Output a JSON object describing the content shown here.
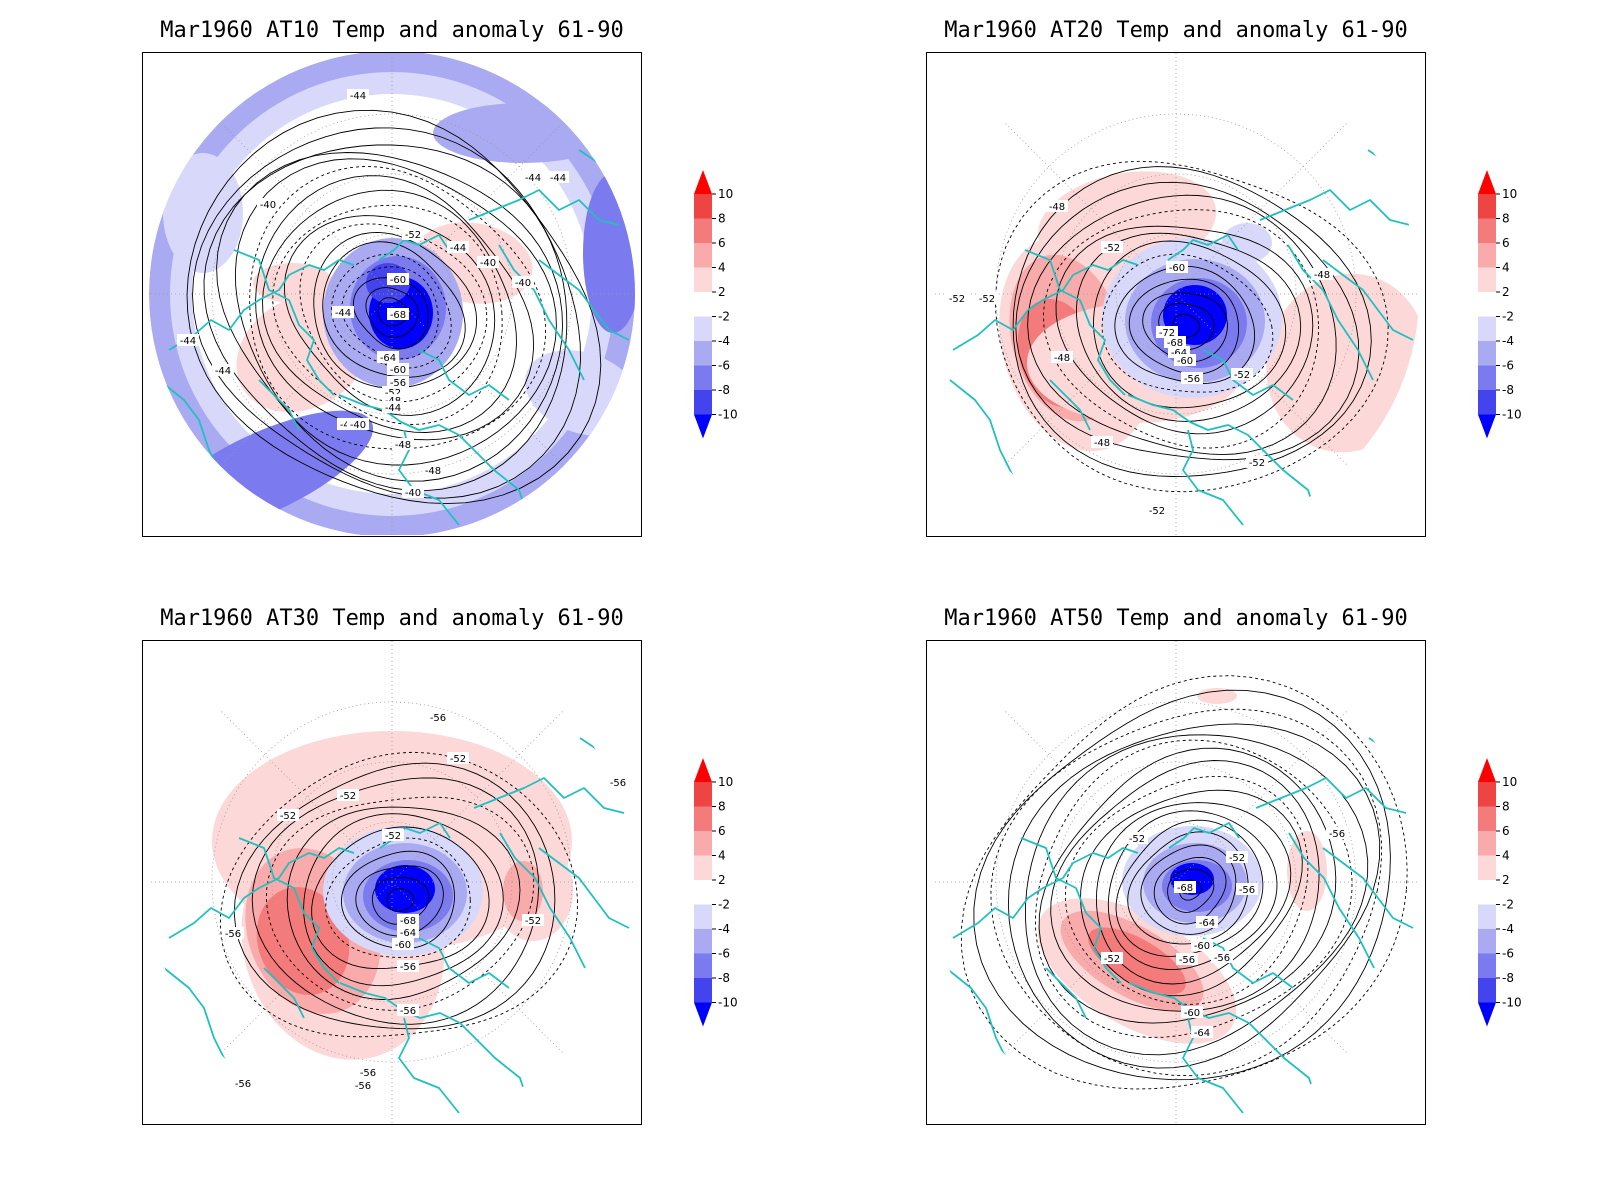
{
  "panels": [
    {
      "title": "Mar1960 AT10 Temp and anomaly 61-90",
      "contour_labels": [
        "-44",
        "-44",
        "-44",
        "-40",
        "-40",
        "-40",
        "-40",
        "-48",
        "-52",
        "-60",
        "-68",
        "-64",
        "-60",
        "-56",
        "-52",
        "-48",
        "-44",
        "-40",
        "-44",
        "-44",
        "-44",
        "-48",
        "-44",
        "-40"
      ]
    },
    {
      "title": "Mar1960 AT20 Temp and anomaly 61-90",
      "contour_labels": [
        "-48",
        "-52",
        "-52",
        "-52",
        "-60",
        "-72",
        "-68",
        "-64",
        "-60",
        "-56",
        "-52",
        "-48",
        "-48",
        "-48",
        "-52",
        "-52"
      ]
    },
    {
      "title": "Mar1960 AT30 Temp and anomaly 61-90",
      "contour_labels": [
        "-56",
        "-52",
        "-52",
        "-52",
        "-52",
        "-56",
        "-68",
        "-64",
        "-60",
        "-56",
        "-56",
        "-56",
        "-52",
        "-56",
        "-56",
        "-56"
      ]
    },
    {
      "title": "Mar1960 AT50 Temp and anomaly 61-90",
      "contour_labels": [
        "-52",
        "-52",
        "-68",
        "-56",
        "-64",
        "-60",
        "-56",
        "-56",
        "-52",
        "-60",
        "-64",
        "-56"
      ]
    }
  ],
  "colorbar": {
    "labels": [
      "10",
      "8",
      "6",
      "4",
      "2",
      "-2",
      "-4",
      "-6",
      "-8",
      "-10"
    ],
    "colors": [
      "#ff0000",
      "#ee4444",
      "#f47b7b",
      "#f9aaaa",
      "#fcd8d8",
      "#ffffff",
      "#d8d8fa",
      "#aaaaf2",
      "#7b7bef",
      "#4444ee",
      "#0000ff"
    ]
  },
  "colors": {
    "coastline": "#20c0c0",
    "contour": "#000000",
    "grid": "#999999"
  }
}
